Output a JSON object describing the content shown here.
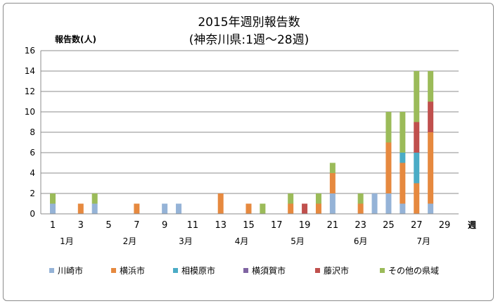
{
  "chart_data": {
    "type": "bar",
    "stacked": true,
    "title": "2015年週別報告数",
    "subtitle": "(神奈川県:1週〜28週)",
    "ylabel": "報告数(人)",
    "xlabel": "週",
    "ylim": [
      0,
      16
    ],
    "yticks": [
      0,
      2,
      4,
      6,
      8,
      10,
      12,
      14,
      16
    ],
    "xlim": [
      1,
      29
    ],
    "xticks": [
      "1",
      "3",
      "5",
      "7",
      "9",
      "11",
      "13",
      "15",
      "17",
      "19",
      "21",
      "23",
      "25",
      "27",
      "29"
    ],
    "months": [
      {
        "label": "1月",
        "week": 2
      },
      {
        "label": "2月",
        "week": 6.5
      },
      {
        "label": "3月",
        "week": 10.5
      },
      {
        "label": "4月",
        "week": 14.5
      },
      {
        "label": "5月",
        "week": 18.5
      },
      {
        "label": "6月",
        "week": 23
      },
      {
        "label": "7月",
        "week": 27.5
      }
    ],
    "grid": true,
    "legend_position": "bottom",
    "weeks": [
      1,
      2,
      3,
      4,
      5,
      6,
      7,
      8,
      9,
      10,
      11,
      12,
      13,
      14,
      15,
      16,
      17,
      18,
      19,
      20,
      21,
      22,
      23,
      24,
      25,
      26,
      27,
      28
    ],
    "series": [
      {
        "name": "川崎市",
        "color": "#95B3D7",
        "values": [
          1,
          0,
          0,
          1,
          0,
          0,
          0,
          0,
          1,
          1,
          0,
          0,
          0,
          0,
          0,
          0,
          0,
          0,
          0,
          0,
          2,
          0,
          0,
          2,
          2,
          1,
          0,
          1
        ]
      },
      {
        "name": "横浜市",
        "color": "#E6893F",
        "values": [
          0,
          0,
          1,
          0,
          0,
          0,
          1,
          0,
          0,
          0,
          0,
          0,
          2,
          0,
          1,
          0,
          0,
          1,
          0,
          1,
          2,
          0,
          1,
          0,
          5,
          4,
          3,
          7
        ]
      },
      {
        "name": "相模原市",
        "color": "#4BACC6",
        "values": [
          0,
          0,
          0,
          0,
          0,
          0,
          0,
          0,
          0,
          0,
          0,
          0,
          0,
          0,
          0,
          0,
          0,
          0,
          0,
          0,
          0,
          0,
          0,
          0,
          0,
          1,
          3,
          0
        ]
      },
      {
        "name": "横須賀市",
        "color": "#8064A2",
        "values": [
          0,
          0,
          0,
          0,
          0,
          0,
          0,
          0,
          0,
          0,
          0,
          0,
          0,
          0,
          0,
          0,
          0,
          0,
          0,
          0,
          0,
          0,
          0,
          0,
          0,
          0,
          0,
          0
        ]
      },
      {
        "name": "藤沢市",
        "color": "#C0504D",
        "values": [
          0,
          0,
          0,
          0,
          0,
          0,
          0,
          0,
          0,
          0,
          0,
          0,
          0,
          0,
          0,
          0,
          0,
          0,
          1,
          0,
          0,
          0,
          0,
          0,
          0,
          0,
          3,
          3
        ]
      },
      {
        "name": "その他の県域",
        "color": "#9BBB59",
        "values": [
          1,
          0,
          0,
          1,
          0,
          0,
          0,
          0,
          0,
          0,
          0,
          0,
          0,
          0,
          0,
          1,
          0,
          1,
          0,
          1,
          1,
          0,
          1,
          0,
          3,
          4,
          5,
          3
        ]
      }
    ]
  }
}
